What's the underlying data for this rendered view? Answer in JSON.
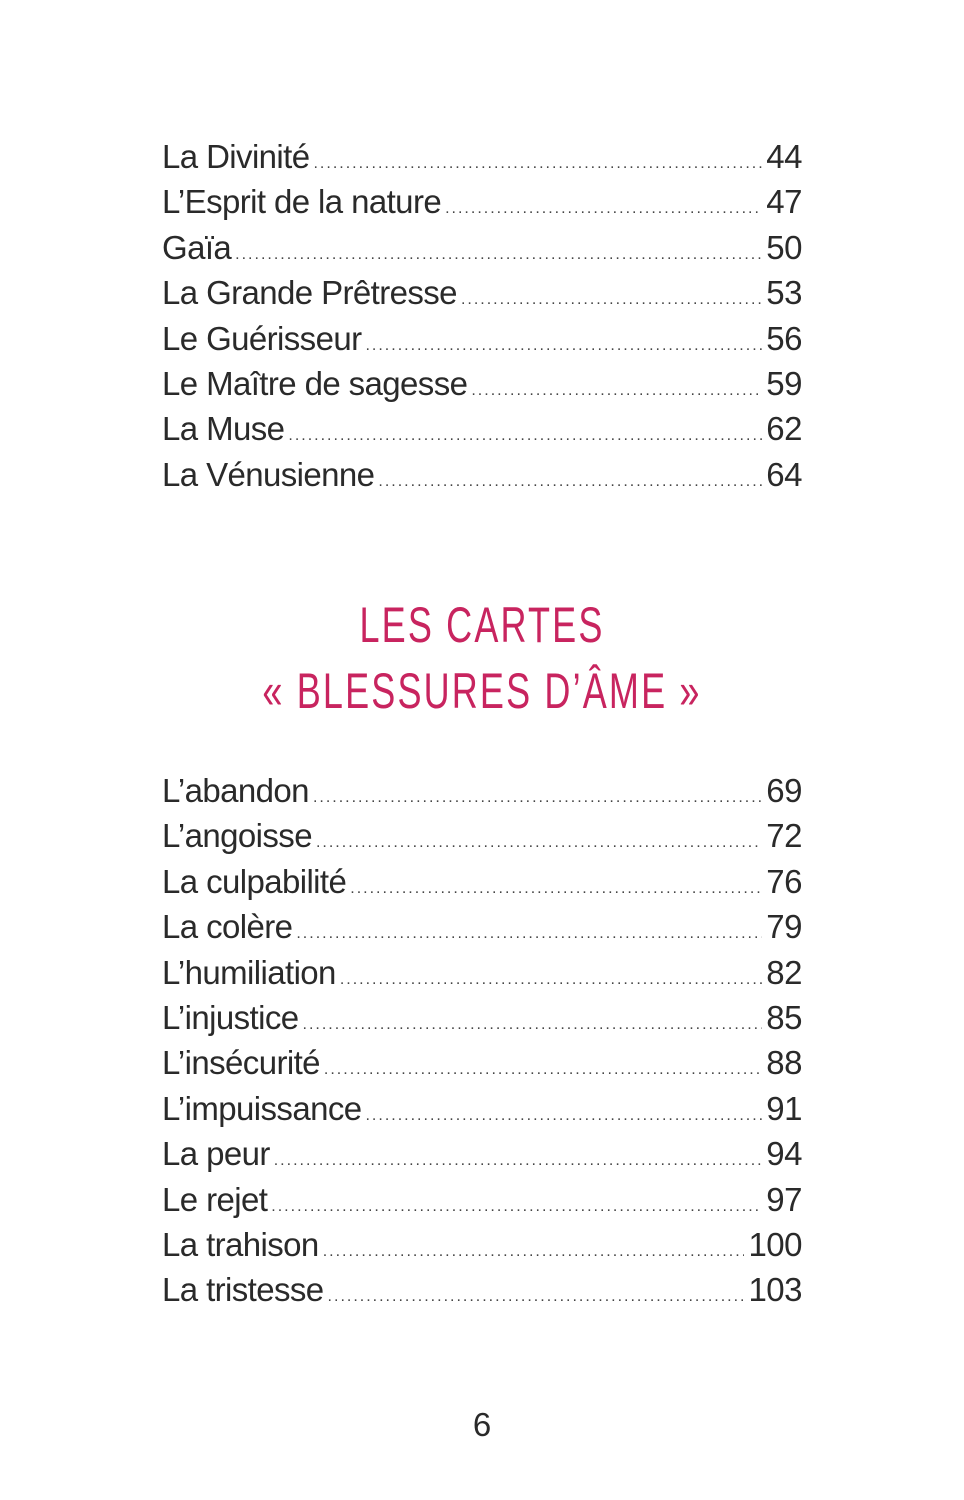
{
  "toc_part1": [
    {
      "title": "La Divinité",
      "page": "44"
    },
    {
      "title": "L’Esprit de la nature",
      "page": "47"
    },
    {
      "title": "Gaïa",
      "page": "50"
    },
    {
      "title": "La Grande Prêtresse",
      "page": "53"
    },
    {
      "title": "Le Guérisseur",
      "page": "56"
    },
    {
      "title": "Le Maître de sagesse",
      "page": "59"
    },
    {
      "title": "La Muse",
      "page": "62"
    },
    {
      "title": "La Vénusienne",
      "page": "64"
    }
  ],
  "section_heading": {
    "line1": "LES CARTES",
    "line2": "« BLESSURES D’ÂME »",
    "color": "#c8245f"
  },
  "toc_part2": [
    {
      "title": "L’abandon",
      "page": "69"
    },
    {
      "title": "L’angoisse",
      "page": "72"
    },
    {
      "title": "La culpabilité",
      "page": "76"
    },
    {
      "title": "La colère",
      "page": "79"
    },
    {
      "title": "L’humiliation",
      "page": "82"
    },
    {
      "title": "L’injustice",
      "page": "85"
    },
    {
      "title": "L’insécurité",
      "page": "88"
    },
    {
      "title": "L’impuissance",
      "page": "91"
    },
    {
      "title": "La peur",
      "page": "94"
    },
    {
      "title": "Le rejet",
      "page": "97"
    },
    {
      "title": "La trahison",
      "page": "100"
    },
    {
      "title": "La tristesse",
      "page": "103"
    }
  ],
  "page_number": "6"
}
